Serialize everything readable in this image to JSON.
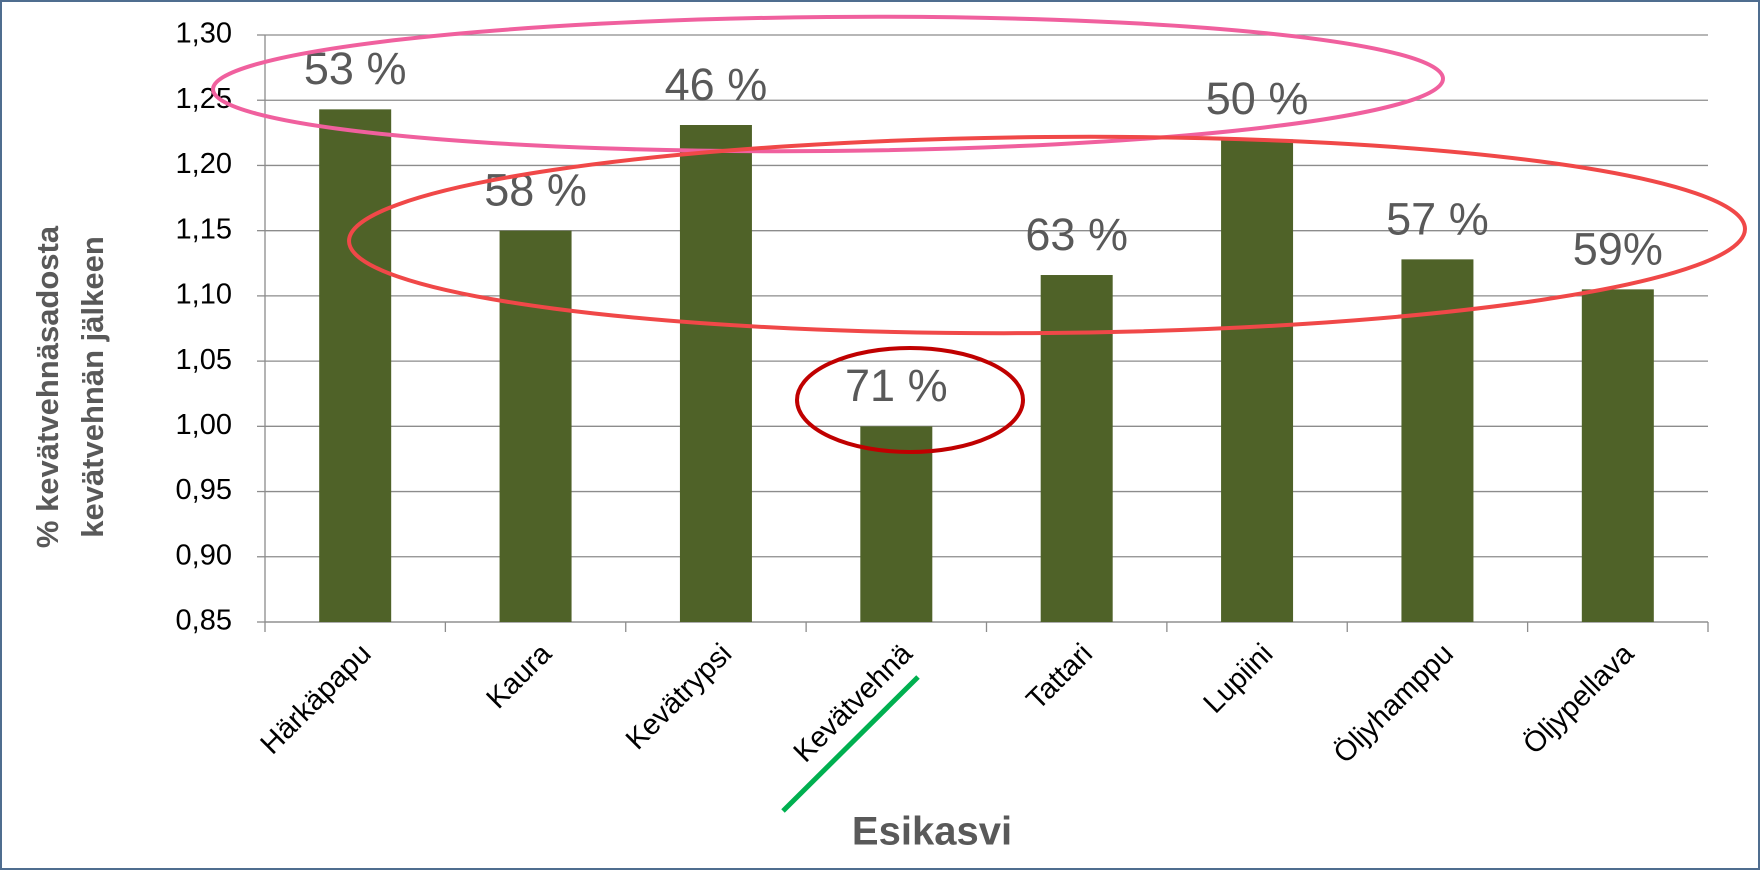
{
  "chart_data": {
    "type": "bar",
    "ylabel": [
      "% kevätvehnäsadosta",
      "kevätvehnän jälkeen"
    ],
    "xlabel": "Esikasvi",
    "categories": [
      "Härkäpapu",
      "Kaura",
      "Kevätrypsi",
      "Kevätvehnä",
      "Tattari",
      "Lupiini",
      "Öljyhamppu",
      "Öljypellava"
    ],
    "values": [
      1.243,
      1.15,
      1.231,
      1.0,
      1.116,
      1.22,
      1.128,
      1.105
    ],
    "annotations": [
      "53 %",
      "58 %",
      "46 %",
      "71 %",
      "63 %",
      "50 %",
      "57 %",
      "59%"
    ],
    "color": "#4f6228",
    "ylim": [
      0.85,
      1.3
    ],
    "yticks": [
      {
        "value": 0.85,
        "label": "0,85"
      },
      {
        "value": 0.9,
        "label": "0,90"
      },
      {
        "value": 0.95,
        "label": "0,95"
      },
      {
        "value": 1.0,
        "label": "1,00"
      },
      {
        "value": 1.05,
        "label": "1,05"
      },
      {
        "value": 1.1,
        "label": "1,10"
      },
      {
        "value": 1.15,
        "label": "1,15"
      },
      {
        "value": 1.2,
        "label": "1,20"
      },
      {
        "value": 1.25,
        "label": "1,25"
      },
      {
        "value": 1.3,
        "label": "1,30"
      }
    ],
    "grid": true
  }
}
